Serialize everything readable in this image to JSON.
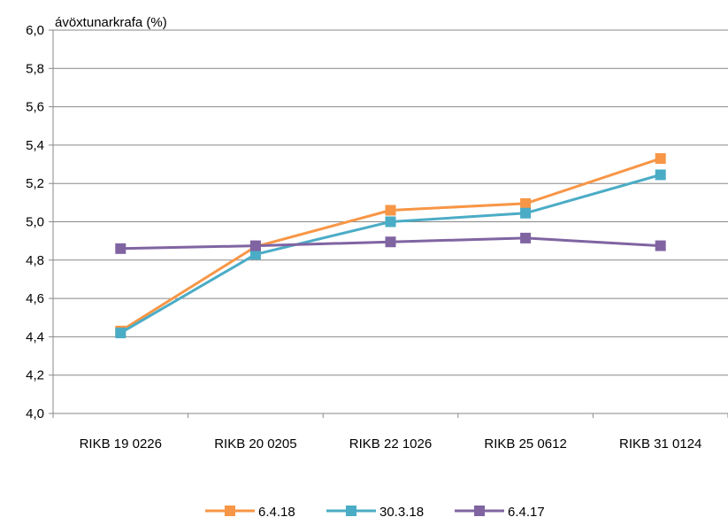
{
  "chart_data": {
    "type": "line",
    "title": "",
    "ylabel": "ávöxtunarkrafa (%)",
    "xlabel": "",
    "categories": [
      "RIKB 19 0226",
      "RIKB 20 0205",
      "RIKB 22 1026",
      "RIKB 25 0612",
      "RIKB 31 0124"
    ],
    "ylim": [
      4.0,
      6.0
    ],
    "yticks": [
      "4,0",
      "4,2",
      "4,4",
      "4,6",
      "4,8",
      "5,0",
      "5,2",
      "5,4",
      "5,6",
      "5,8",
      "6,0"
    ],
    "grid": "horizontal",
    "legend_position": "bottom",
    "series": [
      {
        "name": "6.4.18",
        "color": "#f79646",
        "values": [
          4.43,
          4.87,
          5.06,
          5.095,
          5.33
        ]
      },
      {
        "name": "30.3.18",
        "color": "#4bacc6",
        "values": [
          4.42,
          4.83,
          5.0,
          5.045,
          5.245
        ]
      },
      {
        "name": "6.4.17",
        "color": "#8064a2",
        "values": [
          4.86,
          4.875,
          4.895,
          4.915,
          4.875
        ]
      }
    ]
  }
}
